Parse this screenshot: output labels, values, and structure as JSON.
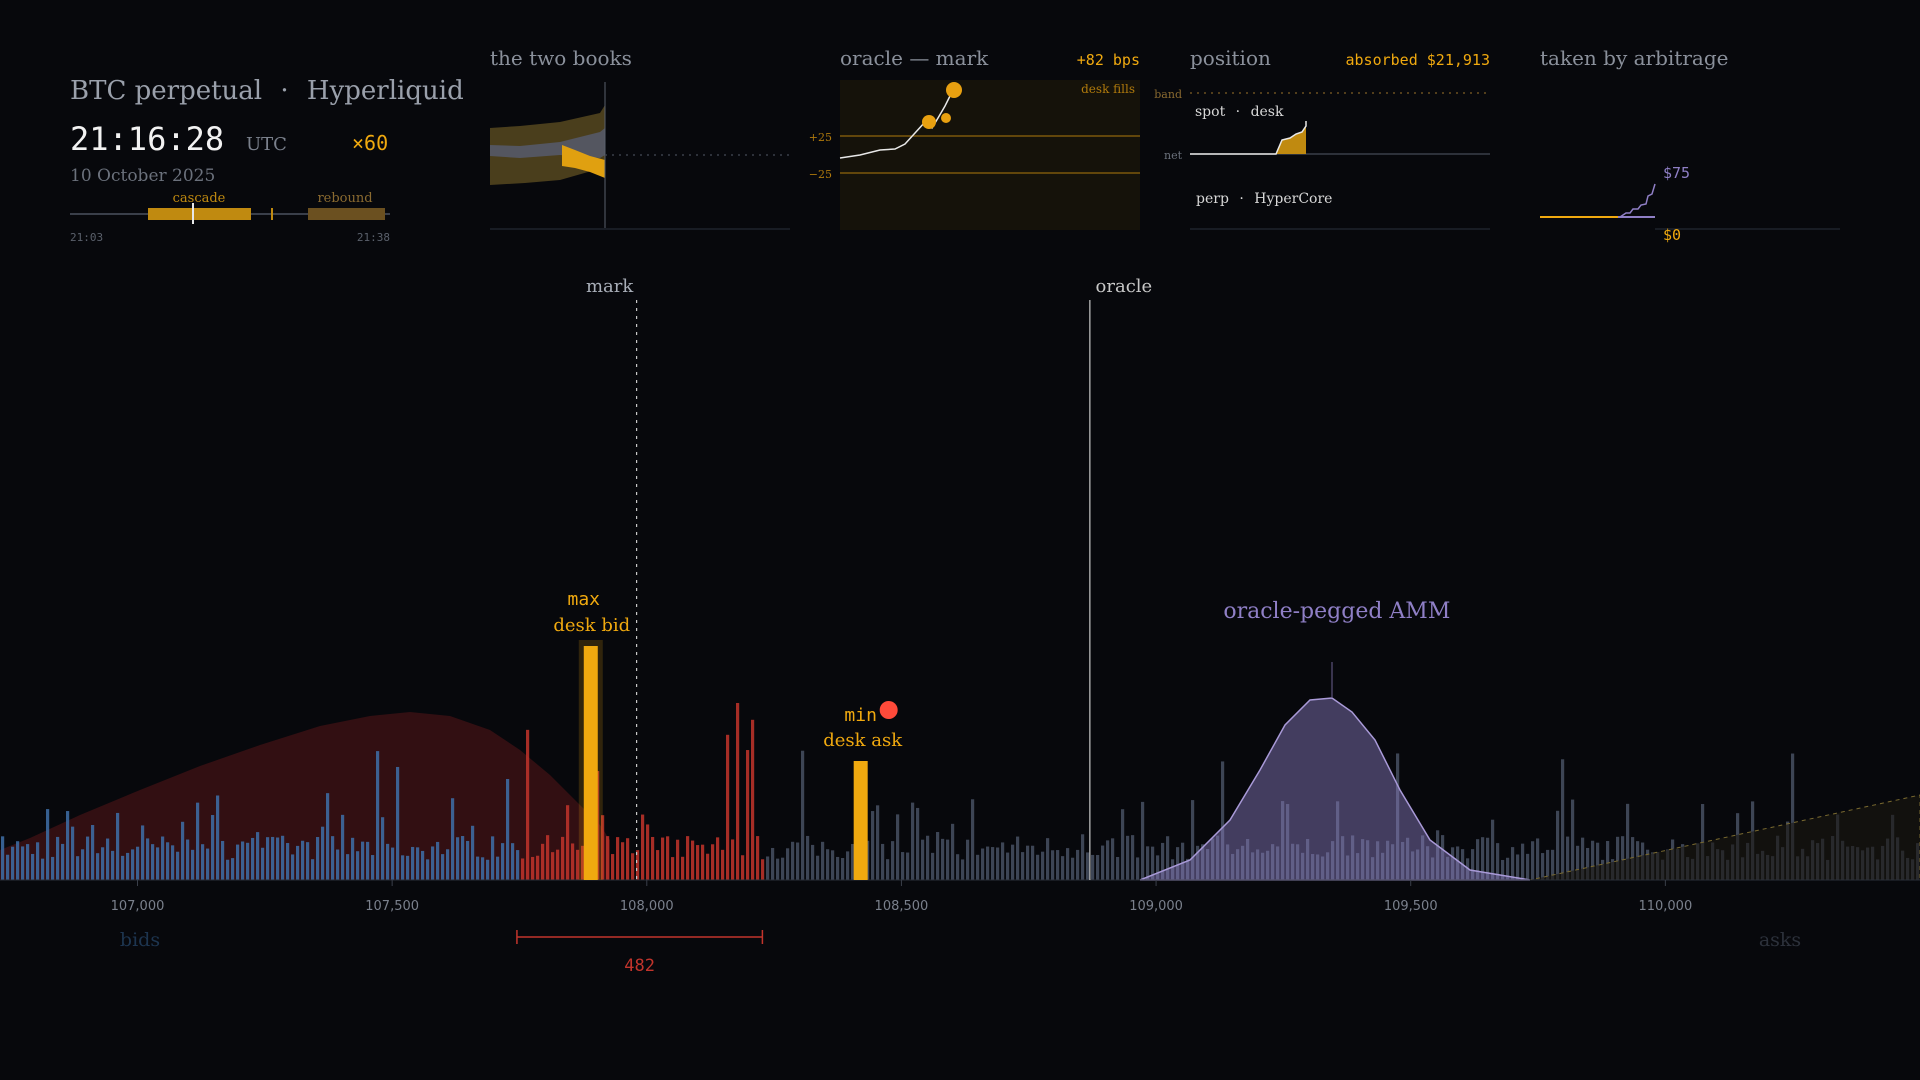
{
  "header": {
    "title": "BTC perpetual",
    "sep": "·",
    "venue": "Hyperliquid",
    "clock": "21:16:28",
    "tz": "UTC",
    "speed": "×60",
    "date": "10 October 2025",
    "timeline": {
      "start": "21:03",
      "end": "21:38",
      "cascade_label": "cascade",
      "rebound_label": "rebound"
    }
  },
  "panels": {
    "books": {
      "title": "the two books"
    },
    "oracle": {
      "title": "oracle — mark",
      "value": "+82 bps",
      "legend": "desk fills",
      "tick_hi": "+25",
      "tick_lo": "−25"
    },
    "position": {
      "title": "position",
      "value": "absorbed $21,913",
      "band_label": "band",
      "net_label": "net",
      "spot_label": "spot",
      "spot_sep": "·",
      "spot_who": "desk",
      "perp_label": "perp",
      "perp_sep": "·",
      "perp_who": "HyperCore"
    },
    "arb": {
      "title": "taken by arbitrage",
      "top": "$75",
      "bottom": "$0"
    }
  },
  "colors": {
    "bid": "#3e6fa8",
    "bid_liquidated": "#c2342c",
    "ask": "#4b5568",
    "desk": "#f0a90f",
    "amm": "#8f7fc6",
    "gap": "#c2342c",
    "text": "#9aa0ab",
    "background": "#07080c"
  },
  "chart_data": {
    "type": "bar",
    "x_ticks": [
      "107,000",
      "107,500",
      "108,000",
      "108,500",
      "109,000",
      "109,500",
      "110,000"
    ],
    "xlim": [
      106730,
      110500
    ],
    "markers": {
      "mark_label": "mark",
      "mark_price": 107980,
      "oracle_label": "oracle",
      "oracle_price": 108870
    },
    "desk_bid": {
      "label_1": "max",
      "label_2": "desk bid",
      "price": 107890
    },
    "desk_ask": {
      "label_1": "min",
      "label_2": "desk ask",
      "price": 108420
    },
    "amm": {
      "label": "oracle-pegged AMM",
      "center": 109355
    },
    "liquidated_range": [
      107745,
      108225
    ],
    "gap": {
      "value": "482",
      "from": 107745,
      "to": 108227
    },
    "side_labels": {
      "bids": "bids",
      "asks": "asks"
    }
  }
}
